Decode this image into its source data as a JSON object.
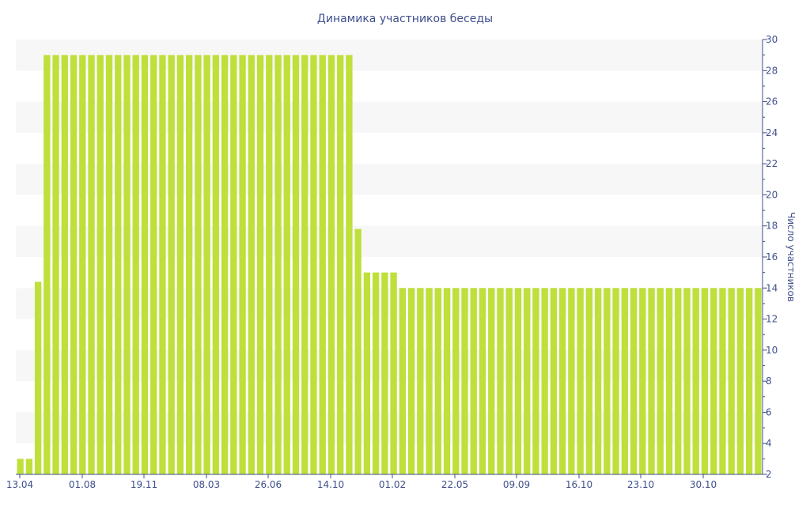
{
  "chart_data": {
    "type": "bar",
    "title": "Динамика участников беседы",
    "xlabel": "",
    "ylabel": "Число участников",
    "ylim": [
      2,
      30
    ],
    "y_ticks": [
      2,
      4,
      6,
      8,
      10,
      12,
      14,
      16,
      18,
      20,
      22,
      24,
      26,
      28,
      30
    ],
    "x_ticks": [
      "13.04",
      "01.08",
      "19.11",
      "08.03",
      "26.06",
      "14.10",
      "01.02",
      "22.05",
      "09.09",
      "16.10",
      "23.10",
      "30.10"
    ],
    "grid": "alternating horizontal bands",
    "y_axis_position": "right",
    "colors": {
      "bar": "#bfdf3a",
      "band": "#f7f7f7",
      "text": "#3f4f8c",
      "axis": "#3f4f8c"
    },
    "values": [
      3,
      3,
      14.4,
      29,
      29,
      29,
      29,
      29,
      29,
      29,
      29,
      29,
      29,
      29,
      29,
      29,
      29,
      29,
      29,
      29,
      29,
      29,
      29,
      29,
      29,
      29,
      29,
      29,
      29,
      29,
      29,
      29,
      29,
      29,
      29,
      29,
      29,
      29,
      17.8,
      15,
      15,
      15,
      15,
      14,
      14,
      14,
      14,
      14,
      14,
      14,
      14,
      14,
      14,
      14,
      14,
      14,
      14,
      14,
      14,
      14,
      14,
      14,
      14,
      14,
      14,
      14,
      14,
      14,
      14,
      14,
      14,
      14,
      14,
      14,
      14,
      14,
      14,
      14,
      14,
      14,
      14,
      14,
      14,
      14
    ]
  }
}
